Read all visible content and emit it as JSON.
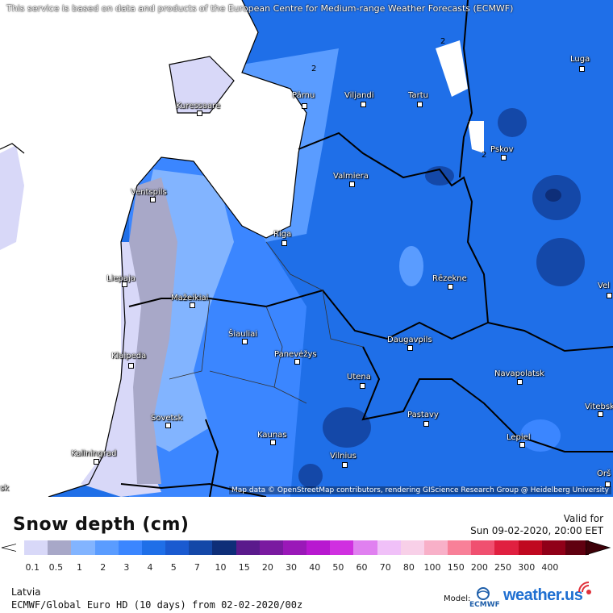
{
  "map": {
    "notice": "This service is based on data and products of the European Centre for Medium-range Weather Forecasts (ECMWF)",
    "attribution": "Map data © OpenStreetMap contributors, rendering GIScience Research Group @ Heidelberg University",
    "contour_labels": [
      "2",
      "2",
      "2"
    ],
    "cities": [
      {
        "name": "Kuressaare"
      },
      {
        "name": "Pärnu"
      },
      {
        "name": "Viljandi"
      },
      {
        "name": "Tartu"
      },
      {
        "name": "Luga"
      },
      {
        "name": "Pskov"
      },
      {
        "name": "Ventspils"
      },
      {
        "name": "Valmiera"
      },
      {
        "name": "Riga"
      },
      {
        "name": "Liepaja"
      },
      {
        "name": "Rēzekne"
      },
      {
        "name": "Mažeikiai"
      },
      {
        "name": "Šiauliai"
      },
      {
        "name": "Panevėžys"
      },
      {
        "name": "Daugavpils"
      },
      {
        "name": "Klaipeda"
      },
      {
        "name": "Utena"
      },
      {
        "name": "Navapolatsk"
      },
      {
        "name": "Vitebsk"
      },
      {
        "name": "Sovetsk"
      },
      {
        "name": "Pastavy"
      },
      {
        "name": "Kaunas"
      },
      {
        "name": "Lepiel"
      },
      {
        "name": "Kaliningrad"
      },
      {
        "name": "Vilnius"
      },
      {
        "name": "Orš"
      },
      {
        "name": "Vel"
      },
      {
        "name": "sk"
      }
    ]
  },
  "legend": {
    "title": "Snow depth (cm)",
    "valid_label": "Valid for",
    "valid_time": "Sun 09-02-2020, 20:00 EET",
    "ticks": [
      "0.1",
      "0.5",
      "1",
      "2",
      "3",
      "4",
      "5",
      "7",
      "10",
      "15",
      "20",
      "30",
      "40",
      "50",
      "60",
      "70",
      "80",
      "100",
      "150",
      "200",
      "250",
      "300",
      "400"
    ],
    "colors": [
      "#d8d8f8",
      "#a8a8c8",
      "#82b4ff",
      "#5a9cff",
      "#3b86ff",
      "#1f6fe8",
      "#1a5ad0",
      "#1448a8",
      "#0e2e78",
      "#5a1a8c",
      "#7a1aa0",
      "#9a18b8",
      "#b818d0",
      "#d030e0",
      "#e080f0",
      "#f0c0f8",
      "#f8d0e8",
      "#f8b0c8",
      "#f88098",
      "#f05070",
      "#e02040",
      "#c00820",
      "#900018",
      "#600010"
    ],
    "region": "Latvia",
    "model_run": "ECMWF/Global Euro HD (10 days) from 02-02-2020/00z",
    "model_label": "Model:",
    "ecmwf_name": "ECMWF",
    "brand": "weather.us"
  }
}
